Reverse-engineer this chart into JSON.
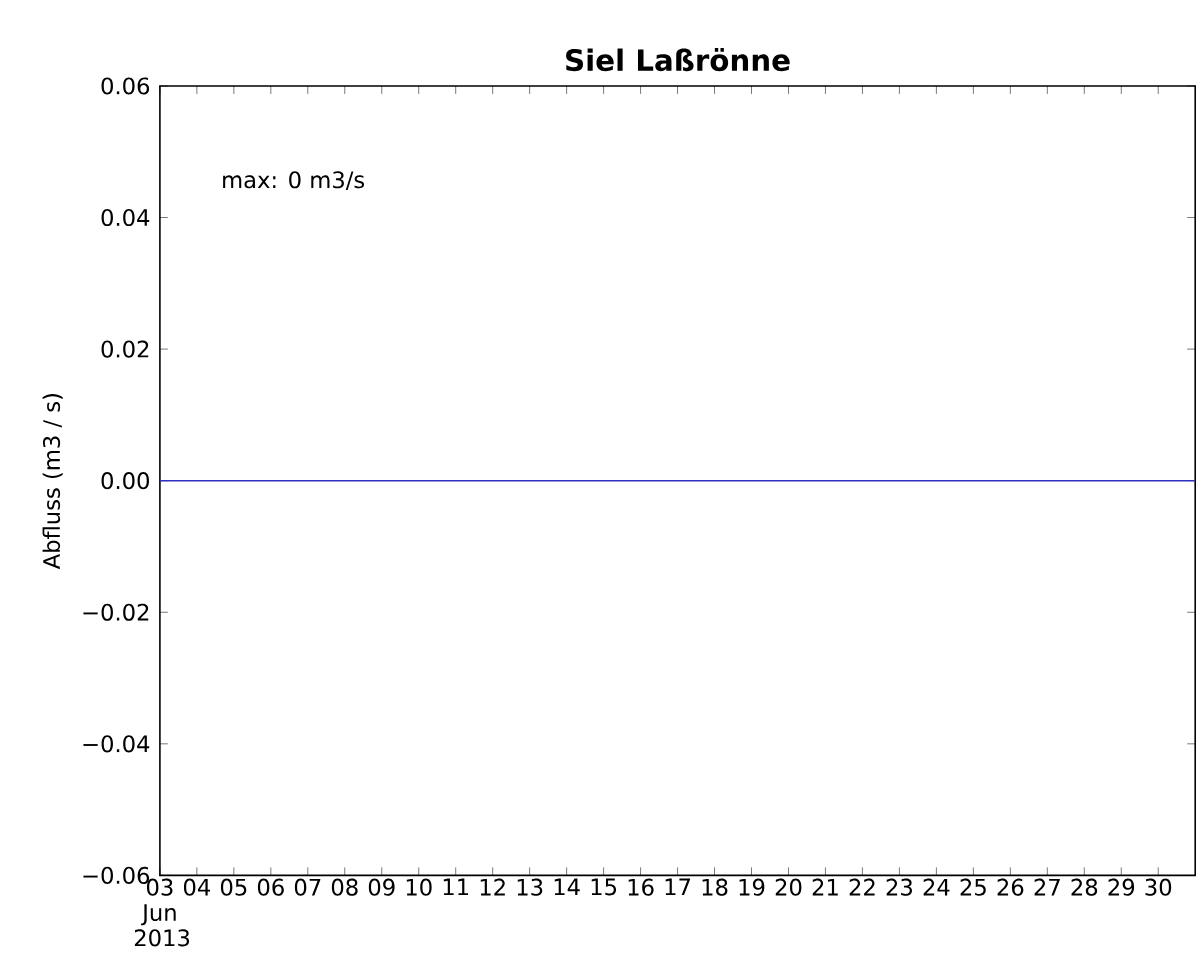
{
  "chart_data": {
    "type": "line",
    "title": "Siel Laßrönne",
    "ylabel": "Abfluss (m3 / s)",
    "annotations": [
      "max: 0 m3/s"
    ],
    "x": [
      "2013-06-03",
      "2013-06-07",
      "2013-06-11",
      "2013-06-15",
      "2013-06-19",
      "2013-06-23",
      "2013-06-27",
      "2013-07-01"
    ],
    "series": [
      {
        "color": "#3030c0",
        "values": [
          0,
          0,
          0,
          0,
          0,
          0,
          0,
          0
        ]
      }
    ],
    "xlim": [
      "2013-06-03",
      "2013-07-01"
    ],
    "ylim": [
      -0.06,
      0.06
    ],
    "yticks": [
      {
        "value": -0.06,
        "label": "−0.06"
      },
      {
        "value": -0.04,
        "label": "−0.04"
      },
      {
        "value": -0.02,
        "label": "−0.02"
      },
      {
        "value": 0,
        "label": "0.00"
      },
      {
        "value": 0.02,
        "label": "0.02"
      },
      {
        "value": 0.04,
        "label": "0.04"
      },
      {
        "value": 0.06,
        "label": "0.06"
      }
    ],
    "xticks": [
      {
        "value": "2013-06-03",
        "label": "03 Jun 2013"
      },
      {
        "value": "2013-06-04",
        "label": "04"
      },
      {
        "value": "2013-06-05",
        "label": "05"
      },
      {
        "value": "2013-06-06",
        "label": "06"
      },
      {
        "value": "2013-06-07",
        "label": "07"
      },
      {
        "value": "2013-06-08",
        "label": "08"
      },
      {
        "value": "2013-06-09",
        "label": "09"
      },
      {
        "value": "2013-06-10",
        "label": "10"
      },
      {
        "value": "2013-06-11",
        "label": "11"
      },
      {
        "value": "2013-06-12",
        "label": "12"
      },
      {
        "value": "2013-06-13",
        "label": "13"
      },
      {
        "value": "2013-06-14",
        "label": "14"
      },
      {
        "value": "2013-06-15",
        "label": "15"
      },
      {
        "value": "2013-06-16",
        "label": "16"
      },
      {
        "value": "2013-06-17",
        "label": "17"
      },
      {
        "value": "2013-06-18",
        "label": "18"
      },
      {
        "value": "2013-06-19",
        "label": "19"
      },
      {
        "value": "2013-06-20",
        "label": "20"
      },
      {
        "value": "2013-06-21",
        "label": "21"
      },
      {
        "value": "2013-06-22",
        "label": "22"
      },
      {
        "value": "2013-06-23",
        "label": "23"
      },
      {
        "value": "2013-06-24",
        "label": "24"
      },
      {
        "value": "2013-06-25",
        "label": "25"
      },
      {
        "value": "2013-06-26",
        "label": "26"
      },
      {
        "value": "2013-06-27",
        "label": "27"
      },
      {
        "value": "2013-06-28",
        "label": "28"
      },
      {
        "value": "2013-06-29",
        "label": "29"
      },
      {
        "value": "2013-06-30",
        "label": "30"
      }
    ],
    "grid": false,
    "marker": "none",
    "line_style": "solid"
  }
}
